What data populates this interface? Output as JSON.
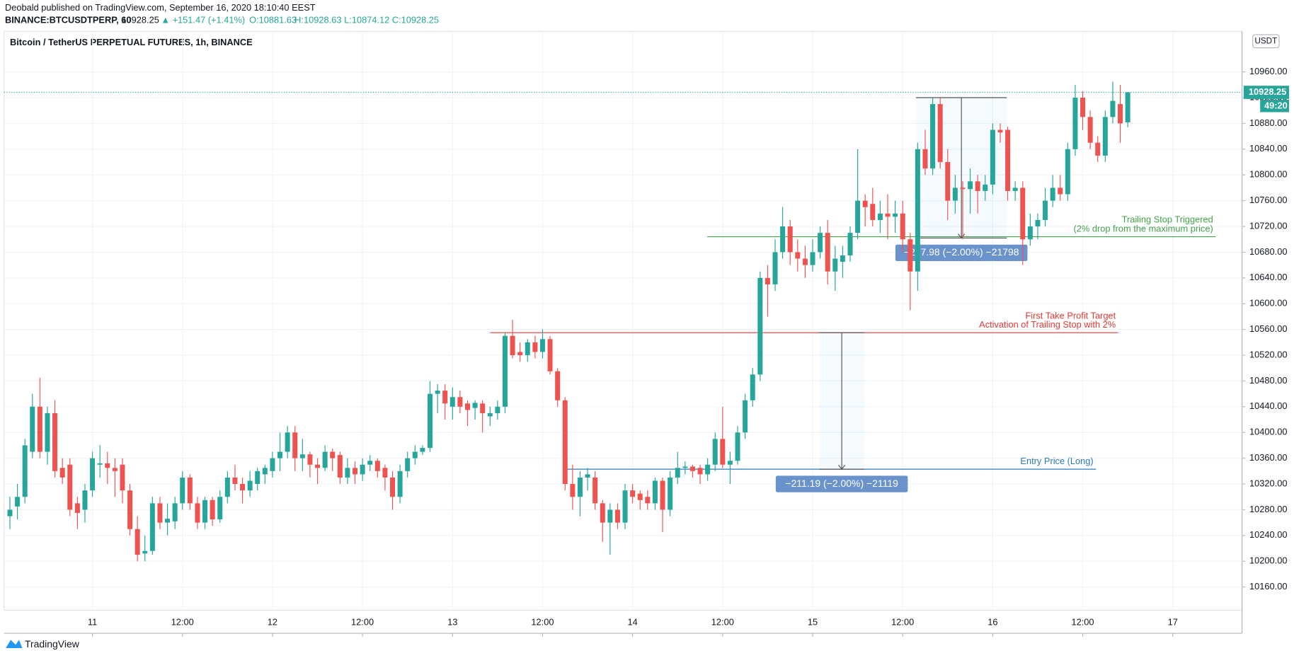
{
  "header": {
    "published": "Deobald published on TradingView.com, September 16, 2020 18:10:40 EEST",
    "symbol": "BINANCE:BTCUSDTPERP, 60",
    "price": "10928.25",
    "change": "▲ +151.47 (+1.41%)",
    "o": "O:10881.63",
    "h": "H:10928.63",
    "l": "L:10874.12",
    "c": "C:10928.25"
  },
  "chart_data": {
    "type": "candlestick",
    "title": "Bitcoin / TetherUS PERPETUAL FUTURES, 1h, BINANCE",
    "currency": "USDT",
    "countdown": "49:20",
    "up_color": "#26a69a",
    "down_color": "#ef5350",
    "grid": true,
    "xlim": [
      -0.77,
      164.23
    ],
    "ylim": [
      10124,
      11023
    ],
    "xticks": [
      {
        "value": 11,
        "label": "11"
      },
      {
        "value": 23,
        "label": "12:00"
      },
      {
        "value": 35,
        "label": "12"
      },
      {
        "value": 47,
        "label": "12:00"
      },
      {
        "value": 59,
        "label": "13"
      },
      {
        "value": 71,
        "label": "12:00"
      },
      {
        "value": 83,
        "label": "14"
      },
      {
        "value": 95,
        "label": "12:00"
      },
      {
        "value": 107,
        "label": "15"
      },
      {
        "value": 119,
        "label": "12:00"
      },
      {
        "value": 131,
        "label": "16"
      },
      {
        "value": 143,
        "label": "12:00"
      },
      {
        "value": 155,
        "label": "17"
      }
    ],
    "yticks": [
      {
        "value": 10160,
        "label": "10160.00"
      },
      {
        "value": 10200,
        "label": "10200.00"
      },
      {
        "value": 10240,
        "label": "10240.00"
      },
      {
        "value": 10280,
        "label": "10280.00"
      },
      {
        "value": 10320,
        "label": "10320.00"
      },
      {
        "value": 10360,
        "label": "10360.00"
      },
      {
        "value": 10400,
        "label": "10400.00"
      },
      {
        "value": 10440,
        "label": "10440.00"
      },
      {
        "value": 10480,
        "label": "10480.00"
      },
      {
        "value": 10520,
        "label": "10520.00"
      },
      {
        "value": 10560,
        "label": "10560.00"
      },
      {
        "value": 10600,
        "label": "10600.00"
      },
      {
        "value": 10640,
        "label": "10640.00"
      },
      {
        "value": 10680,
        "label": "10680.00"
      },
      {
        "value": 10720,
        "label": "10720.00"
      },
      {
        "value": 10760,
        "label": "10760.00"
      },
      {
        "value": 10800,
        "label": "10800.00"
      },
      {
        "value": 10840,
        "label": "10840.00"
      },
      {
        "value": 10880,
        "label": "10880.00"
      },
      {
        "value": 10920,
        "label": "10920.00"
      },
      {
        "value": 10960,
        "label": "10960.00"
      }
    ],
    "candles": [
      [
        10270,
        10300,
        10250,
        10280
      ],
      [
        10285,
        10320,
        10265,
        10300
      ],
      [
        10300,
        10390,
        10290,
        10380
      ],
      [
        10370,
        10460,
        10360,
        10440
      ],
      [
        10440,
        10485,
        10360,
        10370
      ],
      [
        10370,
        10440,
        10350,
        10430
      ],
      [
        10430,
        10450,
        10330,
        10340
      ],
      [
        10345,
        10360,
        10320,
        10330
      ],
      [
        10350,
        10360,
        10270,
        10280
      ],
      [
        10290,
        10300,
        10250,
        10275
      ],
      [
        10280,
        10320,
        10260,
        10310
      ],
      [
        10310,
        10370,
        10300,
        10360
      ],
      [
        10350,
        10380,
        10330,
        10352
      ],
      [
        10352,
        10370,
        10320,
        10345
      ],
      [
        10345,
        10360,
        10300,
        10340
      ],
      [
        10350,
        10360,
        10290,
        10310
      ],
      [
        10310,
        10320,
        10240,
        10250
      ],
      [
        10250,
        10270,
        10200,
        10210
      ],
      [
        10212,
        10240,
        10200,
        10216
      ],
      [
        10216,
        10300,
        10210,
        10290
      ],
      [
        10290,
        10300,
        10250,
        10260
      ],
      [
        10260,
        10290,
        10240,
        10266
      ],
      [
        10262,
        10300,
        10250,
        10290
      ],
      [
        10290,
        10340,
        10280,
        10330
      ],
      [
        10330,
        10335,
        10280,
        10290
      ],
      [
        10290,
        10300,
        10250,
        10260
      ],
      [
        10260,
        10300,
        10250,
        10295
      ],
      [
        10295,
        10300,
        10255,
        10265
      ],
      [
        10265,
        10310,
        10260,
        10300
      ],
      [
        10300,
        10340,
        10290,
        10330
      ],
      [
        10330,
        10350,
        10310,
        10320
      ],
      [
        10320,
        10330,
        10290,
        10310
      ],
      [
        10310,
        10340,
        10300,
        10325
      ],
      [
        10320,
        10345,
        10310,
        10340
      ],
      [
        10335,
        10350,
        10320,
        10345
      ],
      [
        10340,
        10370,
        10330,
        10360
      ],
      [
        10360,
        10400,
        10340,
        10370
      ],
      [
        10370,
        10410,
        10360,
        10400
      ],
      [
        10400,
        10410,
        10340,
        10360
      ],
      [
        10360,
        10390,
        10340,
        10366
      ],
      [
        10366,
        10370,
        10330,
        10350
      ],
      [
        10350,
        10360,
        10320,
        10345
      ],
      [
        10345,
        10380,
        10340,
        10370
      ],
      [
        10370,
        10375,
        10340,
        10360
      ],
      [
        10365,
        10370,
        10320,
        10330
      ],
      [
        10330,
        10360,
        10320,
        10345
      ],
      [
        10345,
        10355,
        10320,
        10335
      ],
      [
        10335,
        10360,
        10325,
        10350
      ],
      [
        10350,
        10365,
        10340,
        10356
      ],
      [
        10356,
        10360,
        10330,
        10340
      ],
      [
        10345,
        10350,
        10310,
        10330
      ],
      [
        10330,
        10340,
        10280,
        10300
      ],
      [
        10300,
        10350,
        10290,
        10340
      ],
      [
        10340,
        10370,
        10330,
        10360
      ],
      [
        10360,
        10380,
        10350,
        10370
      ],
      [
        10370,
        10380,
        10365,
        10376
      ],
      [
        10376,
        10480,
        10370,
        10460
      ],
      [
        10460,
        10475,
        10430,
        10465
      ],
      [
        10465,
        10475,
        10420,
        10445
      ],
      [
        10440,
        10470,
        10420,
        10455
      ],
      [
        10455,
        10465,
        10430,
        10440
      ],
      [
        10445,
        10450,
        10410,
        10435
      ],
      [
        10438,
        10450,
        10420,
        10446
      ],
      [
        10445,
        10450,
        10400,
        10430
      ],
      [
        10425,
        10440,
        10410,
        10430
      ],
      [
        10430,
        10450,
        10420,
        10440
      ],
      [
        10440,
        10555,
        10430,
        10550
      ],
      [
        10550,
        10575,
        10515,
        10520
      ],
      [
        10525,
        10540,
        10510,
        10520
      ],
      [
        10520,
        10545,
        10510,
        10540
      ],
      [
        10540,
        10550,
        10515,
        10525
      ],
      [
        10525,
        10560,
        10515,
        10545
      ],
      [
        10545,
        10550,
        10490,
        10495
      ],
      [
        10495,
        10500,
        10440,
        10450
      ],
      [
        10450,
        10455,
        10310,
        10320
      ],
      [
        10320,
        10350,
        10280,
        10300
      ],
      [
        10300,
        10340,
        10270,
        10330
      ],
      [
        10330,
        10345,
        10310,
        10335
      ],
      [
        10330,
        10340,
        10280,
        10290
      ],
      [
        10290,
        10295,
        10230,
        10260
      ],
      [
        10260,
        10290,
        10210,
        10280
      ],
      [
        10280,
        10290,
        10250,
        10260
      ],
      [
        10260,
        10320,
        10250,
        10310
      ],
      [
        10310,
        10320,
        10290,
        10300
      ],
      [
        10305,
        10310,
        10280,
        10295
      ],
      [
        10300,
        10310,
        10280,
        10290
      ],
      [
        10290,
        10330,
        10280,
        10325
      ],
      [
        10325,
        10330,
        10245,
        10280
      ],
      [
        10280,
        10340,
        10270,
        10330
      ],
      [
        10330,
        10370,
        10320,
        10345
      ],
      [
        10345,
        10355,
        10335,
        10347
      ],
      [
        10347,
        10350,
        10330,
        10340
      ],
      [
        10345,
        10350,
        10320,
        10335
      ],
      [
        10335,
        10360,
        10325,
        10350
      ],
      [
        10350,
        10400,
        10340,
        10390
      ],
      [
        10390,
        10440,
        10345,
        10350
      ],
      [
        10350,
        10370,
        10320,
        10356
      ],
      [
        10356,
        10410,
        10350,
        10400
      ],
      [
        10400,
        10460,
        10390,
        10450
      ],
      [
        10450,
        10500,
        10440,
        10490
      ],
      [
        10490,
        10650,
        10480,
        10640
      ],
      [
        10640,
        10660,
        10580,
        10630
      ],
      [
        10630,
        10700,
        10620,
        10680
      ],
      [
        10680,
        10750,
        10670,
        10720
      ],
      [
        10720,
        10730,
        10660,
        10680
      ],
      [
        10680,
        10700,
        10650,
        10670
      ],
      [
        10670,
        10690,
        10640,
        10660
      ],
      [
        10660,
        10700,
        10650,
        10680
      ],
      [
        10680,
        10720,
        10670,
        10710
      ],
      [
        10710,
        10730,
        10630,
        10650
      ],
      [
        10650,
        10690,
        10620,
        10670
      ],
      [
        10665,
        10690,
        10640,
        10675
      ],
      [
        10675,
        10720,
        10665,
        10710
      ],
      [
        10710,
        10840,
        10700,
        10760
      ],
      [
        10760,
        10770,
        10720,
        10750
      ],
      [
        10755,
        10780,
        10720,
        10730
      ],
      [
        10730,
        10760,
        10710,
        10740
      ],
      [
        10740,
        10770,
        10700,
        10735
      ],
      [
        10735,
        10760,
        10710,
        10740
      ],
      [
        10740,
        10760,
        10680,
        10700
      ],
      [
        10700,
        10710,
        10590,
        10650
      ],
      [
        10650,
        10850,
        10620,
        10840
      ],
      [
        10840,
        10870,
        10800,
        10810
      ],
      [
        10810,
        10920,
        10800,
        10910
      ],
      [
        10910,
        10920,
        10810,
        10820
      ],
      [
        10820,
        10840,
        10730,
        10760
      ],
      [
        10760,
        10800,
        10740,
        10780
      ],
      [
        10780,
        10790,
        10700,
        10778
      ],
      [
        10778,
        10810,
        10740,
        10790
      ],
      [
        10790,
        10800,
        10740,
        10775
      ],
      [
        10775,
        10800,
        10760,
        10785
      ],
      [
        10785,
        10880,
        10770,
        10870
      ],
      [
        10870,
        10880,
        10850,
        10866
      ],
      [
        10870,
        10875,
        10760,
        10775
      ],
      [
        10775,
        10790,
        10760,
        10780
      ],
      [
        10780,
        10790,
        10660,
        10700
      ],
      [
        10700,
        10740,
        10690,
        10720
      ],
      [
        10720,
        10740,
        10700,
        10730
      ],
      [
        10730,
        10780,
        10720,
        10760
      ],
      [
        10760,
        10800,
        10750,
        10780
      ],
      [
        10780,
        10800,
        10760,
        10770
      ],
      [
        10770,
        10850,
        10760,
        10840
      ],
      [
        10840,
        10940,
        10830,
        10920
      ],
      [
        10920,
        10930,
        10870,
        10890
      ],
      [
        10890,
        10900,
        10840,
        10850
      ],
      [
        10850,
        10860,
        10820,
        10830
      ],
      [
        10830,
        10900,
        10820,
        10890
      ],
      [
        10890,
        10945,
        10880,
        10915
      ],
      [
        10910,
        10940,
        10850,
        10880
      ],
      [
        10881.63,
        10928.63,
        10874.12,
        10928.25
      ]
    ],
    "annotations": [
      {
        "lines": [
          "Entry Price (Long)"
        ],
        "level": 10343,
        "color": "#2a7ab8"
      },
      {
        "lines": [
          "First Take Profit Target",
          "Activation of Trailing Stop with 2%"
        ],
        "level": 10555,
        "color": "#e53935"
      },
      {
        "lines": [
          "Trailing Stop Triggered",
          "(2% drop from the maximum price)"
        ],
        "level": 10704,
        "color": "#43a047"
      }
    ],
    "measures": [
      {
        "from": 10555,
        "to": 10343,
        "label": "−211.19 (−2.00%) −21119"
      },
      {
        "from": 10920,
        "to": 10702,
        "label": "−217.98 (−2.00%) −21798"
      }
    ]
  },
  "footer": {
    "brand": "TradingView"
  }
}
